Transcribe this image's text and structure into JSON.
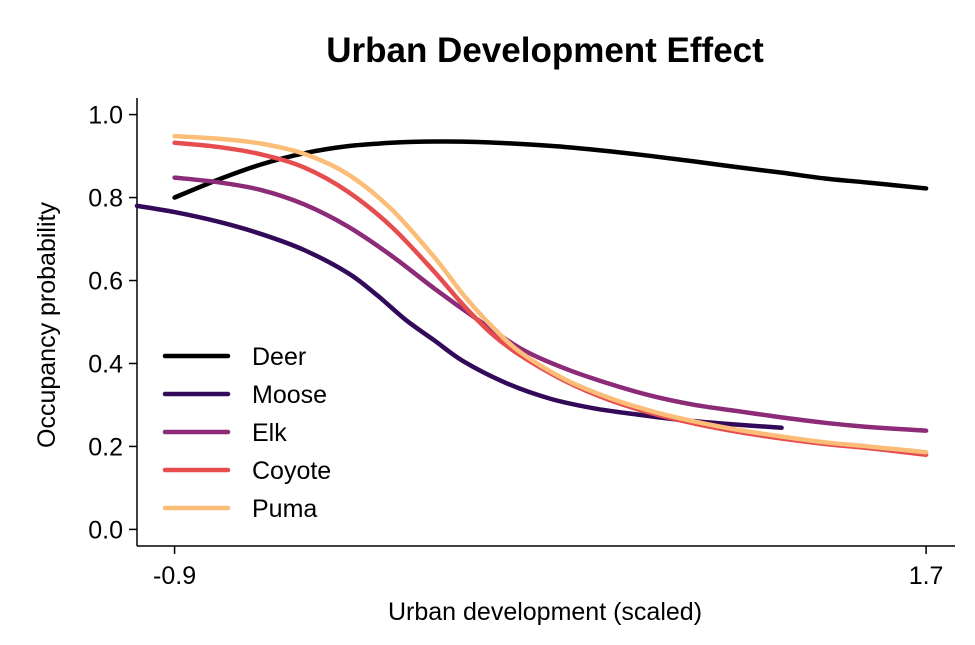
{
  "chart_data": {
    "type": "line",
    "title": "Urban Development Effect",
    "xlabel": "Urban development (scaled)",
    "ylabel": "Occupancy probability",
    "xlim": [
      -1.03,
      1.8
    ],
    "ylim": [
      -0.04,
      1.04
    ],
    "xticks": [
      -0.9,
      1.7
    ],
    "xtick_labels": [
      "-0.9",
      "1.7"
    ],
    "yticks": [
      0.0,
      0.2,
      0.4,
      0.6,
      0.8,
      1.0
    ],
    "ytick_labels": [
      "0.0",
      "0.2",
      "0.4",
      "0.6",
      "0.8",
      "1.0"
    ],
    "grid": false,
    "legend_position": "bottom-left",
    "series": [
      {
        "name": "Deer",
        "color": "#000000",
        "x": [
          -0.9,
          -0.75,
          -0.6,
          -0.45,
          -0.3,
          -0.15,
          0.0,
          0.15,
          0.3,
          0.45,
          0.6,
          0.75,
          0.9,
          1.05,
          1.2,
          1.35,
          1.5,
          1.7
        ],
        "y": [
          0.8,
          0.843,
          0.88,
          0.907,
          0.924,
          0.932,
          0.935,
          0.934,
          0.929,
          0.922,
          0.912,
          0.9,
          0.887,
          0.873,
          0.86,
          0.846,
          0.836,
          0.822
        ]
      },
      {
        "name": "Moose",
        "color": "#33095a",
        "x": [
          -1.03,
          -0.9,
          -0.75,
          -0.6,
          -0.45,
          -0.3,
          -0.2,
          -0.1,
          0.0,
          0.1,
          0.25,
          0.4,
          0.55,
          0.7,
          0.85,
          1.0,
          1.2
        ],
        "y": [
          0.78,
          0.765,
          0.742,
          0.712,
          0.673,
          0.618,
          0.565,
          0.505,
          0.455,
          0.405,
          0.352,
          0.315,
          0.292,
          0.277,
          0.264,
          0.255,
          0.245
        ]
      },
      {
        "name": "Elk",
        "color": "#8c2b78",
        "x": [
          -0.9,
          -0.75,
          -0.6,
          -0.45,
          -0.3,
          -0.15,
          0.0,
          0.15,
          0.3,
          0.45,
          0.6,
          0.75,
          0.9,
          1.05,
          1.2,
          1.35,
          1.5,
          1.7
        ],
        "y": [
          0.848,
          0.837,
          0.818,
          0.783,
          0.73,
          0.66,
          0.58,
          0.505,
          0.435,
          0.388,
          0.352,
          0.322,
          0.3,
          0.285,
          0.27,
          0.257,
          0.247,
          0.238
        ]
      },
      {
        "name": "Coyote",
        "color": "#e64d4f",
        "x": [
          -0.9,
          -0.75,
          -0.6,
          -0.45,
          -0.3,
          -0.15,
          0.0,
          0.1,
          0.2,
          0.3,
          0.45,
          0.6,
          0.75,
          0.9,
          1.05,
          1.2,
          1.35,
          1.5,
          1.7
        ],
        "y": [
          0.932,
          0.922,
          0.904,
          0.872,
          0.814,
          0.73,
          0.62,
          0.54,
          0.47,
          0.418,
          0.358,
          0.313,
          0.28,
          0.255,
          0.235,
          0.219,
          0.206,
          0.196,
          0.18
        ]
      },
      {
        "name": "Puma",
        "color": "#fbbd78",
        "x": [
          -0.9,
          -0.75,
          -0.6,
          -0.45,
          -0.3,
          -0.15,
          0.0,
          0.1,
          0.2,
          0.3,
          0.45,
          0.6,
          0.75,
          0.9,
          1.05,
          1.2,
          1.35,
          1.5,
          1.7
        ],
        "y": [
          0.948,
          0.942,
          0.93,
          0.905,
          0.856,
          0.772,
          0.655,
          0.565,
          0.488,
          0.425,
          0.362,
          0.318,
          0.285,
          0.26,
          0.24,
          0.224,
          0.21,
          0.2,
          0.186
        ]
      }
    ]
  }
}
